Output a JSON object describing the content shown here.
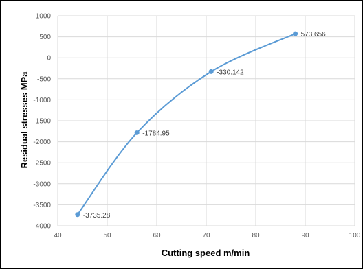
{
  "chart_data": {
    "type": "scatter",
    "title": "",
    "xlabel": "Cutting speed m/min",
    "ylabel": "Residual stresses MPa",
    "xlim": [
      40,
      100
    ],
    "ylim": [
      -4000,
      1000
    ],
    "xticks": [
      "40",
      "50",
      "60",
      "70",
      "80",
      "90",
      "100"
    ],
    "yticks": [
      "1000",
      "500",
      "0",
      "-500",
      "-1000",
      "-1500",
      "-2000",
      "-2500",
      "-3000",
      "-3500",
      "-4000"
    ],
    "grid": true,
    "smooth_line": true,
    "series": [
      {
        "color": "#5b9bd5",
        "points": [
          {
            "x": 44,
            "y": -3735.28,
            "label": "-3735.28"
          },
          {
            "x": 56,
            "y": -1784.95,
            "label": "-1784.95"
          },
          {
            "x": 71,
            "y": -330.142,
            "label": "-330.142"
          },
          {
            "x": 88,
            "y": 573.656,
            "label": "573.656"
          }
        ]
      }
    ]
  }
}
